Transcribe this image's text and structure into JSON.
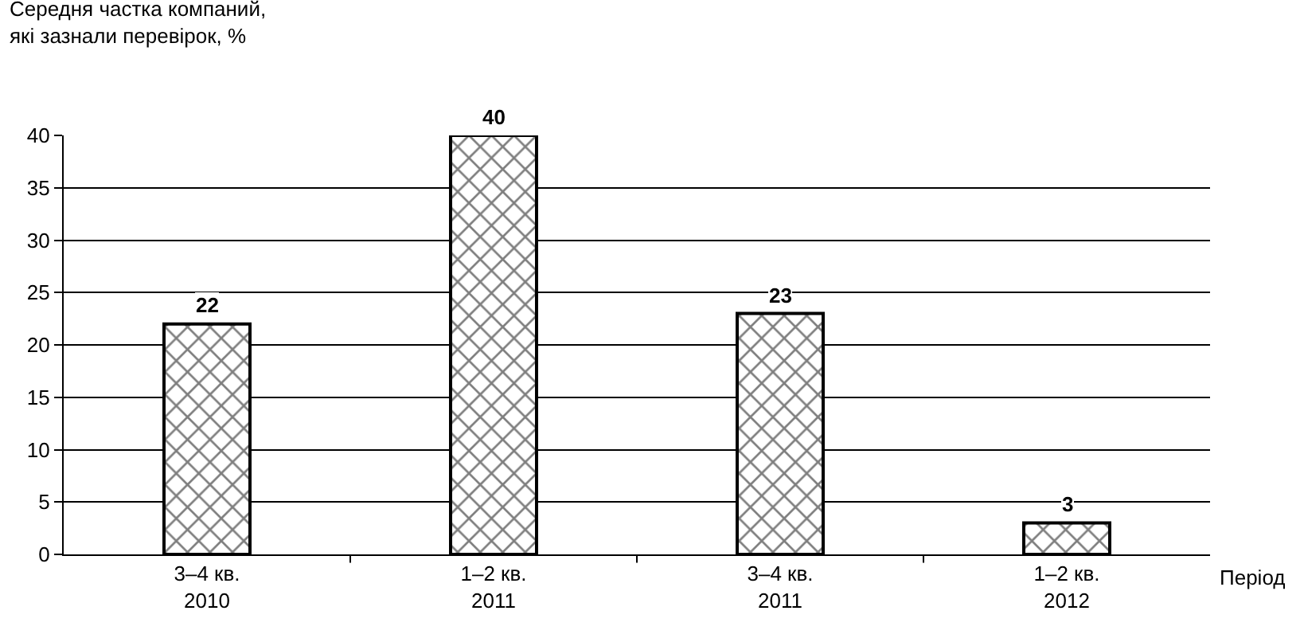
{
  "chart_data": {
    "type": "bar",
    "ylabel": "Середня частка компаний,\nякі зазнали перевірок, %",
    "xlabel": "Період",
    "categories": [
      "3–4 кв.\n2010",
      "1–2 кв.\n2011",
      "3–4 кв.\n2011",
      "1–2 кв.\n2012"
    ],
    "values": [
      22,
      40,
      23,
      3
    ],
    "color": "#000000",
    "ylim": [
      0,
      40
    ],
    "yticks": [
      0,
      5,
      10,
      15,
      20,
      25,
      30,
      35,
      40
    ],
    "grid": "y",
    "data_labels": true
  }
}
